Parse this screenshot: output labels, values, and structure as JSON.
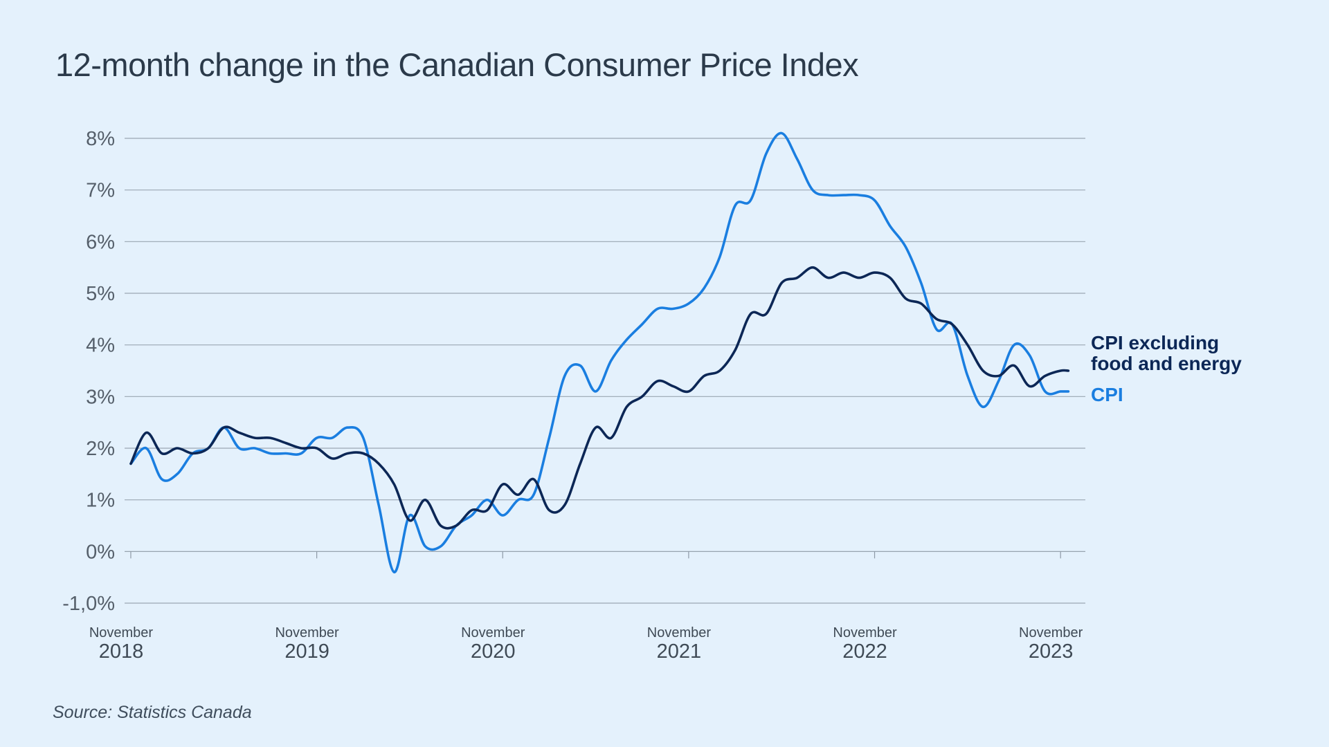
{
  "page": {
    "title": "12-month change in the Canadian Consumer Price Index",
    "source": "Source: Statistics Canada"
  },
  "chart_data": {
    "type": "line",
    "title": "12-month change in the Canadian Consumer Price Index",
    "xlabel": "",
    "ylabel": "",
    "ylim": [
      -1,
      8
    ],
    "grid": true,
    "y_ticks": [
      {
        "value": 8,
        "label": "8%"
      },
      {
        "value": 7,
        "label": "7%"
      },
      {
        "value": 6,
        "label": "6%"
      },
      {
        "value": 5,
        "label": "5%"
      },
      {
        "value": 4,
        "label": "4%"
      },
      {
        "value": 3,
        "label": "3%"
      },
      {
        "value": 2,
        "label": "2%"
      },
      {
        "value": 1,
        "label": "1%"
      },
      {
        "value": 0,
        "label": "0%"
      },
      {
        "value": -1,
        "label": "-1,0%"
      }
    ],
    "x_ticks": [
      {
        "month_index": 0,
        "top": "November",
        "bottom": "2018"
      },
      {
        "month_index": 12,
        "top": "November",
        "bottom": "2019"
      },
      {
        "month_index": 24,
        "top": "November",
        "bottom": "2020"
      },
      {
        "month_index": 36,
        "top": "November",
        "bottom": "2021"
      },
      {
        "month_index": 48,
        "top": "November",
        "bottom": "2022"
      },
      {
        "month_index": 60,
        "top": "November",
        "bottom": "2023"
      }
    ],
    "x_range": [
      -0.4,
      61.6
    ],
    "series": [
      {
        "name": "CPI",
        "legend": [
          "CPI"
        ],
        "color": "#1a7ee0",
        "x": [
          0,
          1,
          2,
          3,
          4,
          5,
          6,
          7,
          8,
          9,
          10,
          11,
          12,
          13,
          14,
          15,
          16,
          17,
          18,
          19,
          20,
          21,
          22,
          23,
          24,
          25,
          26,
          27,
          28,
          29,
          30,
          31,
          32,
          33,
          34,
          35,
          36,
          37,
          38,
          39,
          40,
          41,
          42,
          43,
          44,
          45,
          46,
          47,
          48,
          49,
          50,
          51,
          52,
          53,
          54,
          55,
          56,
          57,
          58,
          59,
          60,
          60.5
        ],
        "values": [
          1.7,
          2.0,
          1.4,
          1.5,
          1.9,
          2.0,
          2.4,
          2.0,
          2.0,
          1.9,
          1.9,
          1.9,
          2.2,
          2.2,
          2.4,
          2.2,
          0.9,
          -0.4,
          0.7,
          0.1,
          0.1,
          0.5,
          0.7,
          1.0,
          0.7,
          1.0,
          1.1,
          2.2,
          3.4,
          3.6,
          3.1,
          3.7,
          4.1,
          4.4,
          4.7,
          4.7,
          4.8,
          5.1,
          5.7,
          6.7,
          6.8,
          7.7,
          8.1,
          7.6,
          7.0,
          6.9,
          6.9,
          6.9,
          6.8,
          6.3,
          5.9,
          5.2,
          4.3,
          4.4,
          3.4,
          2.8,
          3.3,
          4.0,
          3.8,
          3.1,
          3.1,
          3.1
        ],
        "last_value_label_y": 3.1
      },
      {
        "name": "CPI excluding food and energy",
        "legend": [
          "CPI excluding",
          "food and energy"
        ],
        "color": "#0c2756",
        "x": [
          0,
          1,
          2,
          3,
          4,
          5,
          6,
          7,
          8,
          9,
          10,
          11,
          12,
          13,
          14,
          15,
          16,
          17,
          18,
          19,
          20,
          21,
          22,
          23,
          24,
          25,
          26,
          27,
          28,
          29,
          30,
          31,
          32,
          33,
          34,
          35,
          36,
          37,
          38,
          39,
          40,
          41,
          42,
          43,
          44,
          45,
          46,
          47,
          48,
          49,
          50,
          51,
          52,
          53,
          54,
          55,
          56,
          57,
          58,
          59,
          60,
          60.5
        ],
        "values": [
          1.7,
          2.3,
          1.9,
          2.0,
          1.9,
          2.0,
          2.4,
          2.3,
          2.2,
          2.2,
          2.1,
          2.0,
          2.0,
          1.8,
          1.9,
          1.9,
          1.7,
          1.3,
          0.6,
          1.0,
          0.5,
          0.5,
          0.8,
          0.8,
          1.3,
          1.1,
          1.4,
          0.8,
          0.9,
          1.7,
          2.4,
          2.2,
          2.8,
          3.0,
          3.3,
          3.2,
          3.1,
          3.4,
          3.5,
          3.9,
          4.6,
          4.6,
          5.2,
          5.3,
          5.5,
          5.3,
          5.4,
          5.3,
          5.4,
          5.3,
          4.9,
          4.8,
          4.5,
          4.4,
          4.0,
          3.5,
          3.4,
          3.6,
          3.2,
          3.4,
          3.5,
          3.5
        ],
        "last_value_label_y": 4.1
      }
    ]
  }
}
